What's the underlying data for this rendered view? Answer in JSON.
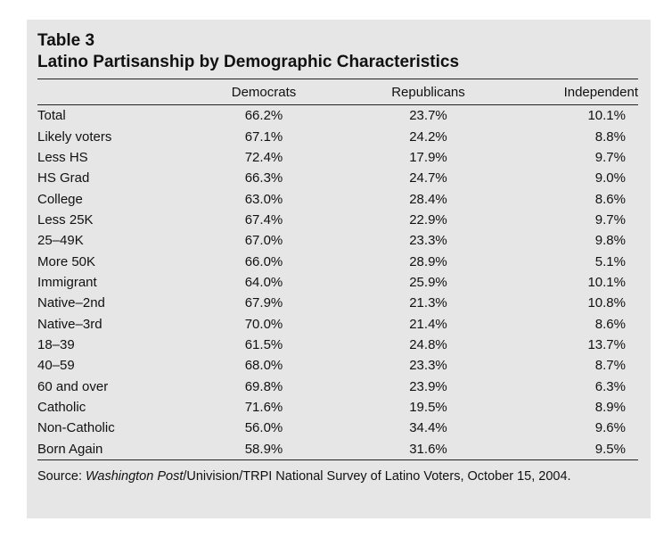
{
  "table": {
    "number": "Table 3",
    "title": "Latino Partisanship by Demographic Characteristics",
    "columns": [
      "",
      "Democrats",
      "Republicans",
      "Independent"
    ],
    "rows": [
      {
        "label": "Total",
        "democrats": "66.2%",
        "republicans": "23.7%",
        "independent": "10.1%"
      },
      {
        "label": "Likely voters",
        "democrats": "67.1%",
        "republicans": "24.2%",
        "independent": "8.8%"
      },
      {
        "label": "Less HS",
        "democrats": "72.4%",
        "republicans": "17.9%",
        "independent": "9.7%"
      },
      {
        "label": "HS Grad",
        "democrats": "66.3%",
        "republicans": "24.7%",
        "independent": "9.0%"
      },
      {
        "label": "College",
        "democrats": "63.0%",
        "republicans": "28.4%",
        "independent": "8.6%"
      },
      {
        "label": "Less 25K",
        "democrats": "67.4%",
        "republicans": "22.9%",
        "independent": "9.7%"
      },
      {
        "label": "25–49K",
        "democrats": "67.0%",
        "republicans": "23.3%",
        "independent": "9.8%"
      },
      {
        "label": "More 50K",
        "democrats": "66.0%",
        "republicans": "28.9%",
        "independent": "5.1%"
      },
      {
        "label": "Immigrant",
        "democrats": "64.0%",
        "republicans": "25.9%",
        "independent": "10.1%"
      },
      {
        "label": "Native–2nd",
        "democrats": "67.9%",
        "republicans": "21.3%",
        "independent": "10.8%"
      },
      {
        "label": "Native–3rd",
        "democrats": "70.0%",
        "republicans": "21.4%",
        "independent": "8.6%"
      },
      {
        "label": "18–39",
        "democrats": "61.5%",
        "republicans": "24.8%",
        "independent": "13.7%"
      },
      {
        "label": "40–59",
        "democrats": "68.0%",
        "republicans": "23.3%",
        "independent": "8.7%"
      },
      {
        "label": "60 and over",
        "democrats": "69.8%",
        "republicans": "23.9%",
        "independent": "6.3%"
      },
      {
        "label": "Catholic",
        "democrats": "71.6%",
        "republicans": "19.5%",
        "independent": "8.9%"
      },
      {
        "label": "Non-Catholic",
        "democrats": "56.0%",
        "republicans": "34.4%",
        "independent": "9.6%"
      },
      {
        "label": "Born Again",
        "democrats": "58.9%",
        "republicans": "31.6%",
        "independent": "9.5%"
      }
    ]
  },
  "source": {
    "prefix": "Source: ",
    "publication": "Washington Post",
    "rest": "/Univision/TRPI National Survey of Latino Voters, October 15, 2004."
  }
}
